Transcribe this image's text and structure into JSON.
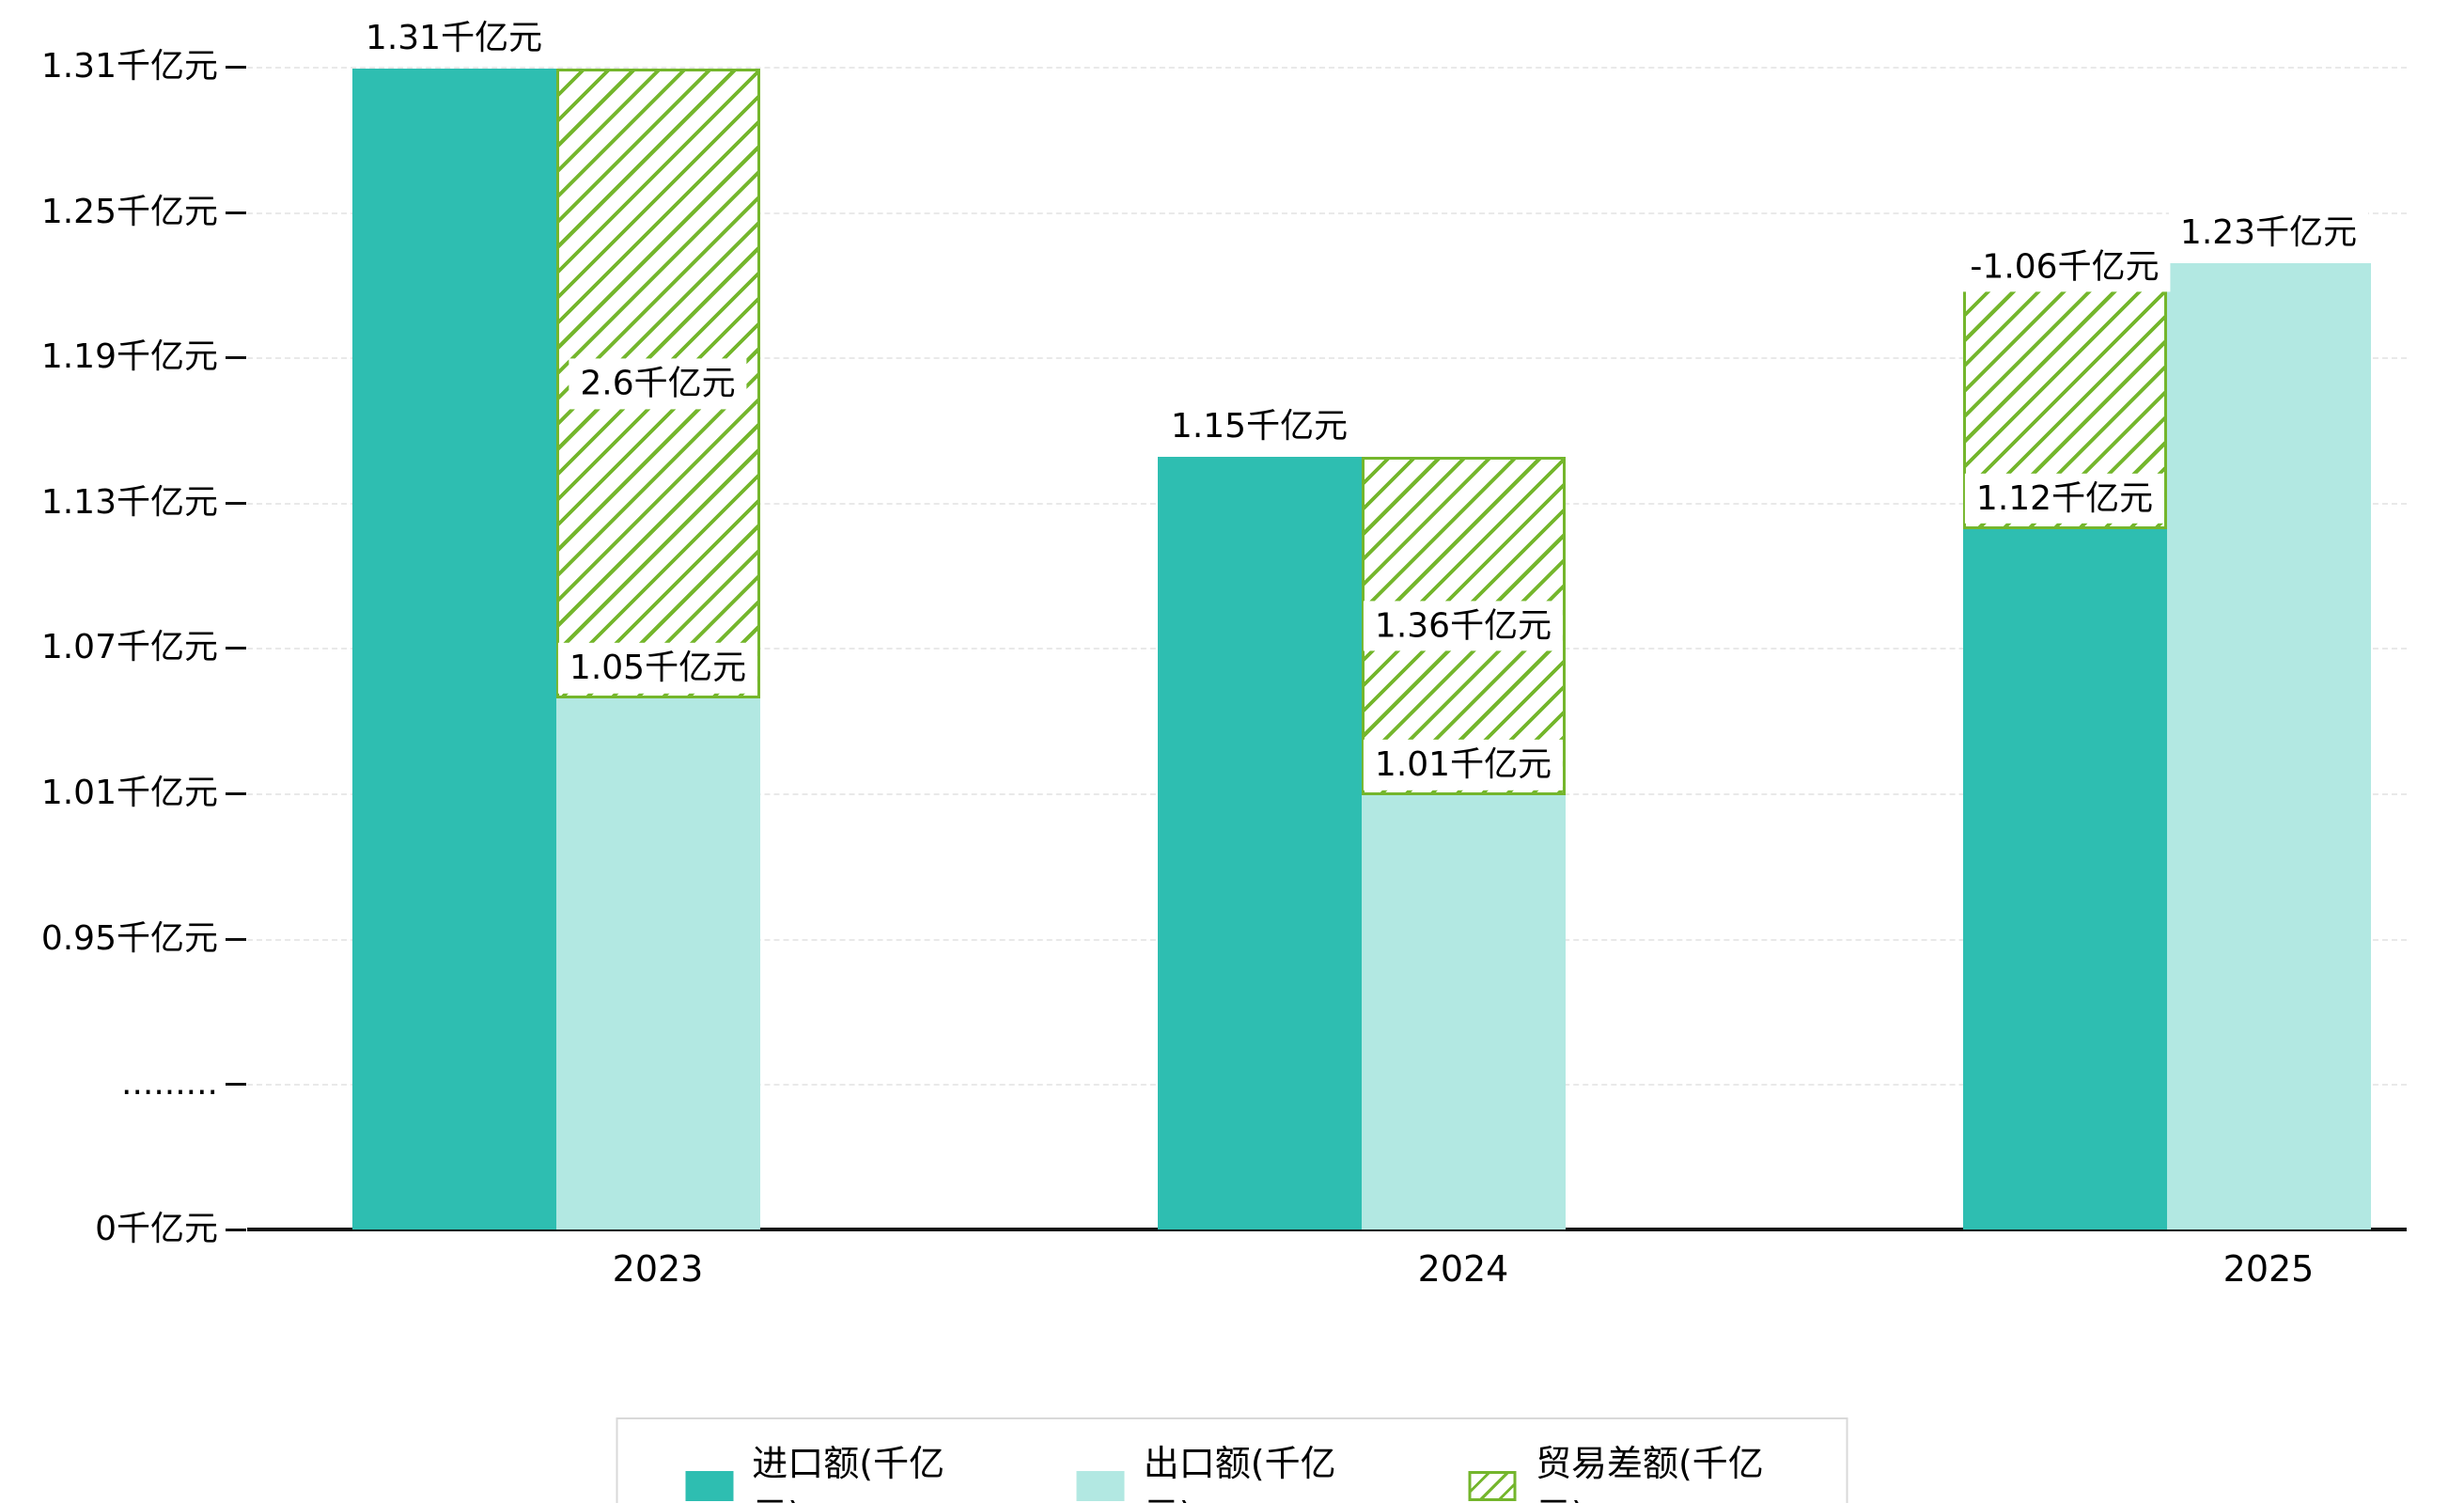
{
  "chart_data": {
    "type": "bar",
    "title": "",
    "categories": [
      "2023",
      "2024",
      "2025"
    ],
    "series": [
      {
        "name": "进口额(千亿元)",
        "role": "import",
        "color": "#2ebeb1",
        "values": [
          1.31,
          1.15,
          1.12
        ],
        "value_labels": [
          "1.31千亿元",
          "1.15千亿元",
          "1.12千亿元"
        ]
      },
      {
        "name": "出口额(千亿元)",
        "role": "export",
        "color": "#b2e8e2",
        "values": [
          1.05,
          1.01,
          1.23
        ],
        "value_labels": [
          "1.05千亿元",
          "1.01千亿元",
          "1.23千亿元"
        ]
      },
      {
        "name": "贸易差额(千亿元)",
        "role": "trade-balance",
        "style": "hatched",
        "color": "#74b62c",
        "values": [
          2.6,
          1.36,
          -1.06
        ],
        "value_labels": [
          "2.6千亿元",
          "1.36千亿元",
          "-1.06千亿元"
        ]
      }
    ],
    "y_axis": {
      "unit": "千亿元",
      "axis_break": true,
      "ticks": [
        {
          "label": "1.31千亿元",
          "value": 1.31
        },
        {
          "label": "1.25千亿元",
          "value": 1.25
        },
        {
          "label": "1.19千亿元",
          "value": 1.19
        },
        {
          "label": "1.13千亿元",
          "value": 1.13
        },
        {
          "label": "1.07千亿元",
          "value": 1.07
        },
        {
          "label": "1.01千亿元",
          "value": 1.01
        },
        {
          "label": "0.95千亿元",
          "value": 0.95
        },
        {
          "label": ".........",
          "value": "break"
        },
        {
          "label": "0千亿元",
          "value": 0
        }
      ]
    },
    "x_axis": {
      "tick_labels": [
        "2023",
        "2024",
        "2025"
      ]
    },
    "legend": {
      "position": "bottom-center",
      "items": [
        "进口额(千亿元)",
        "出口额(千亿元)",
        "贸易差额(千亿元)"
      ]
    },
    "grid": true
  },
  "colors": {
    "import_bar": "#2ebeb1",
    "export_bar": "#b2e8e2",
    "balance_hatch": "#74b62c",
    "gridline": "#e9e9e9",
    "axis": "#111111",
    "label_bg": "#ffffff",
    "text": "#000000",
    "legend_border": "#d9d9d9"
  }
}
